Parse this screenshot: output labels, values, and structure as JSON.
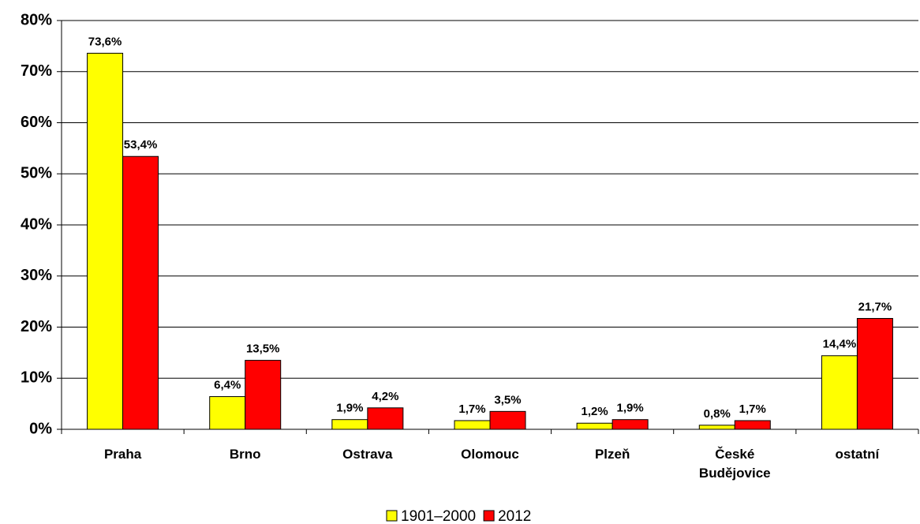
{
  "chart_data": {
    "type": "bar",
    "categories": [
      "Praha",
      "Brno",
      "Ostrava",
      "Olomouc",
      "Plzeň",
      "České Budějovice",
      "ostatní"
    ],
    "series": [
      {
        "name": "1901–2000",
        "color": "#ffff00",
        "values": [
          73.6,
          6.4,
          1.9,
          1.7,
          1.2,
          0.8,
          14.4
        ],
        "value_labels": [
          "73,6%",
          "6,4%",
          "1,9%",
          "1,7%",
          "1,2%",
          "0,8%",
          "14,4%"
        ]
      },
      {
        "name": "2012",
        "color": "#ff0000",
        "values": [
          53.4,
          13.5,
          4.2,
          3.5,
          1.9,
          1.7,
          21.7
        ],
        "value_labels": [
          "53,4%",
          "13,5%",
          "4,2%",
          "3,5%",
          "1,9%",
          "1,7%",
          "21,7%"
        ]
      }
    ],
    "ylim": [
      0,
      80
    ],
    "yticks": [
      {
        "value": 0,
        "label": "0%"
      },
      {
        "value": 10,
        "label": "10%"
      },
      {
        "value": 20,
        "label": "20%"
      },
      {
        "value": 30,
        "label": "30%"
      },
      {
        "value": 40,
        "label": "40%"
      },
      {
        "value": 50,
        "label": "50%"
      },
      {
        "value": 60,
        "label": "60%"
      },
      {
        "value": 70,
        "label": "70%"
      },
      {
        "value": 80,
        "label": "80%"
      }
    ],
    "grid": true,
    "legend": "bottom"
  }
}
